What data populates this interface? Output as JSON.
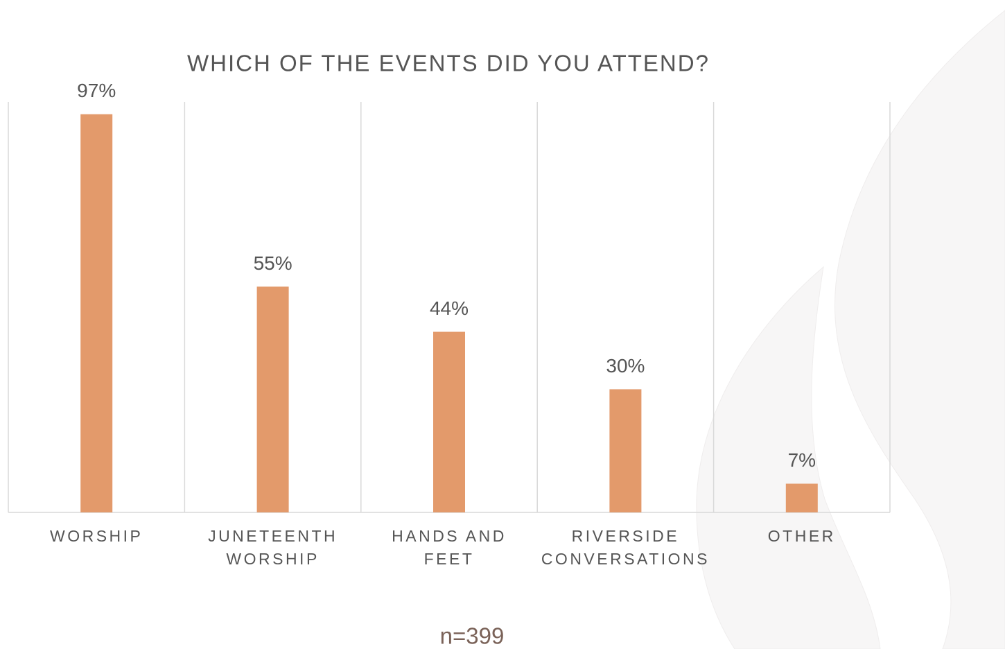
{
  "chart_data": {
    "type": "bar",
    "title": "WHICH OF THE EVENTS DID YOU ATTEND?",
    "categories": [
      "WORSHIP",
      "JUNETEENTH WORSHIP",
      "HANDS AND FEET",
      "RIVERSIDE CONVERSATIONS",
      "OTHER"
    ],
    "values": [
      97,
      55,
      44,
      30,
      7
    ],
    "value_labels": [
      "97%",
      "55%",
      "44%",
      "30%",
      "7%"
    ],
    "color": "#e39a6b",
    "ylim": [
      0,
      100
    ],
    "note": "n=399"
  }
}
